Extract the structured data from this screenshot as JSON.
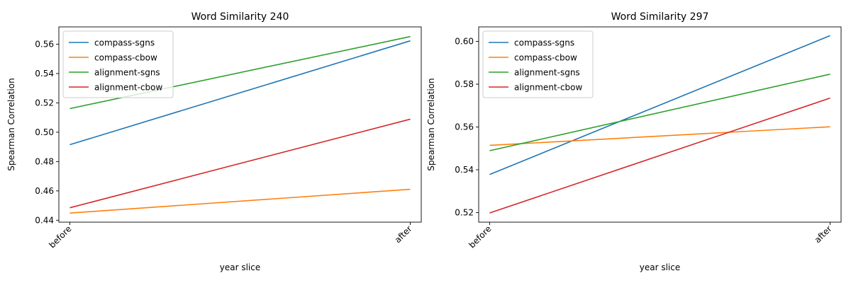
{
  "chart_data": [
    {
      "type": "line",
      "title": "Word Similarity 240",
      "xlabel": "year slice",
      "ylabel": "Spearman Correlation",
      "categories": [
        "before",
        "after"
      ],
      "ylim": [
        0.4387,
        0.5718
      ],
      "yticks": [
        0.44,
        0.46,
        0.48,
        0.5,
        0.52,
        0.54,
        0.56
      ],
      "ytick_labels": [
        "0.44",
        "0.46",
        "0.48",
        "0.50",
        "0.52",
        "0.54",
        "0.56"
      ],
      "grid": false,
      "legend_position": "upper left",
      "series": [
        {
          "name": "compass-sgns",
          "color": "#1f77b4",
          "values": [
            0.4915,
            0.5623
          ]
        },
        {
          "name": "compass-cbow",
          "color": "#ff7f0e",
          "values": [
            0.4449,
            0.4611
          ]
        },
        {
          "name": "alignment-sgns",
          "color": "#2ca02c",
          "values": [
            0.5161,
            0.5652
          ]
        },
        {
          "name": "alignment-cbow",
          "color": "#d62728",
          "values": [
            0.4485,
            0.5089
          ]
        }
      ]
    },
    {
      "type": "line",
      "title": "Word Similarity 297",
      "xlabel": "year slice",
      "ylabel": "Spearman Correlation",
      "categories": [
        "before",
        "after"
      ],
      "ylim": [
        0.5155,
        0.6068
      ],
      "yticks": [
        0.52,
        0.54,
        0.56,
        0.58,
        0.6
      ],
      "ytick_labels": [
        "0.52",
        "0.54",
        "0.56",
        "0.58",
        "0.60"
      ],
      "grid": false,
      "legend_position": "upper left",
      "series": [
        {
          "name": "compass-sgns",
          "color": "#1f77b4",
          "values": [
            0.5378,
            0.6027
          ]
        },
        {
          "name": "compass-cbow",
          "color": "#ff7f0e",
          "values": [
            0.5514,
            0.5601
          ]
        },
        {
          "name": "alignment-sgns",
          "color": "#2ca02c",
          "values": [
            0.5489,
            0.5847
          ]
        },
        {
          "name": "alignment-cbow",
          "color": "#d62728",
          "values": [
            0.5198,
            0.5735
          ]
        }
      ]
    }
  ]
}
